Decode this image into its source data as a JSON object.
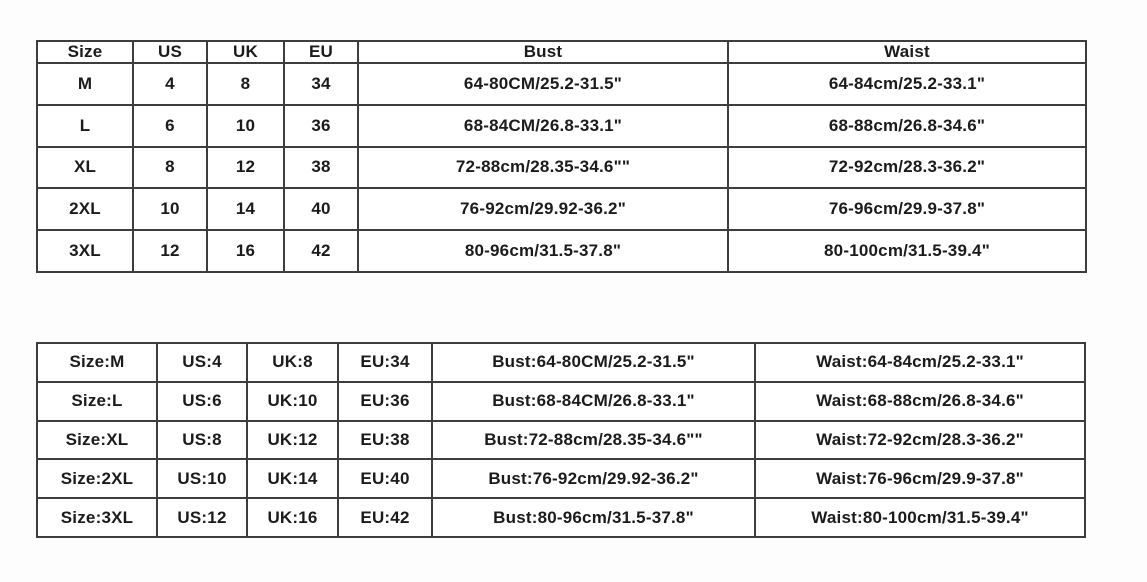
{
  "top_table": {
    "headers": [
      "Size",
      "US",
      "UK",
      "EU",
      "Bust",
      "Waist"
    ],
    "rows": [
      [
        "M",
        "4",
        "8",
        "34",
        "64-80CM/25.2-31.5\"",
        "64-84cm/25.2-33.1\""
      ],
      [
        "L",
        "6",
        "10",
        "36",
        "68-84CM/26.8-33.1\"",
        "68-88cm/26.8-34.6\""
      ],
      [
        "XL",
        "8",
        "12",
        "38",
        "72-88cm/28.35-34.6\"\"",
        "72-92cm/28.3-36.2\""
      ],
      [
        "2XL",
        "10",
        "14",
        "40",
        "76-92cm/29.92-36.2\"",
        "76-96cm/29.9-37.8\""
      ],
      [
        "3XL",
        "12",
        "16",
        "42",
        "80-96cm/31.5-37.8\"",
        "80-100cm/31.5-39.4\""
      ]
    ]
  },
  "bottom_table": {
    "rows": [
      [
        "Size:M",
        "US:4",
        "UK:8",
        "EU:34",
        "Bust:64-80CM/25.2-31.5\"",
        "Waist:64-84cm/25.2-33.1\""
      ],
      [
        "Size:L",
        "US:6",
        "UK:10",
        "EU:36",
        "Bust:68-84CM/26.8-33.1\"",
        "Waist:68-88cm/26.8-34.6\""
      ],
      [
        "Size:XL",
        "US:8",
        "UK:12",
        "EU:38",
        "Bust:72-88cm/28.35-34.6\"\"",
        "Waist:72-92cm/28.3-36.2\""
      ],
      [
        "Size:2XL",
        "US:10",
        "UK:14",
        "EU:40",
        "Bust:76-92cm/29.92-36.2\"",
        "Waist:76-96cm/29.9-37.8\""
      ],
      [
        "Size:3XL",
        "US:12",
        "UK:16",
        "EU:42",
        "Bust:80-96cm/31.5-37.8\"",
        "Waist:80-100cm/31.5-39.4\""
      ]
    ]
  }
}
